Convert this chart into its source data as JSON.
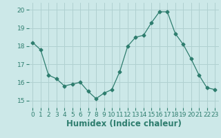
{
  "x": [
    0,
    1,
    2,
    3,
    4,
    5,
    6,
    7,
    8,
    9,
    10,
    11,
    12,
    13,
    14,
    15,
    16,
    17,
    18,
    19,
    20,
    21,
    22,
    23
  ],
  "y": [
    18.2,
    17.8,
    16.4,
    16.2,
    15.8,
    15.9,
    16.0,
    15.5,
    15.1,
    15.4,
    15.6,
    16.6,
    18.0,
    18.5,
    18.6,
    19.3,
    19.9,
    19.9,
    18.7,
    18.1,
    17.3,
    16.4,
    15.7,
    15.6
  ],
  "xlabel": "Humidex (Indice chaleur)",
  "ylim": [
    14.6,
    20.4
  ],
  "yticks": [
    15,
    16,
    17,
    18,
    19,
    20
  ],
  "xticks": [
    0,
    1,
    2,
    3,
    4,
    5,
    6,
    7,
    8,
    9,
    10,
    11,
    12,
    13,
    14,
    15,
    16,
    17,
    18,
    19,
    20,
    21,
    22,
    23
  ],
  "line_color": "#2e7d6e",
  "marker": "D",
  "marker_size": 2.5,
  "bg_color": "#cce8e8",
  "grid_color": "#b0d0d0",
  "tick_label_fontsize": 6.5,
  "xlabel_fontsize": 8.5
}
